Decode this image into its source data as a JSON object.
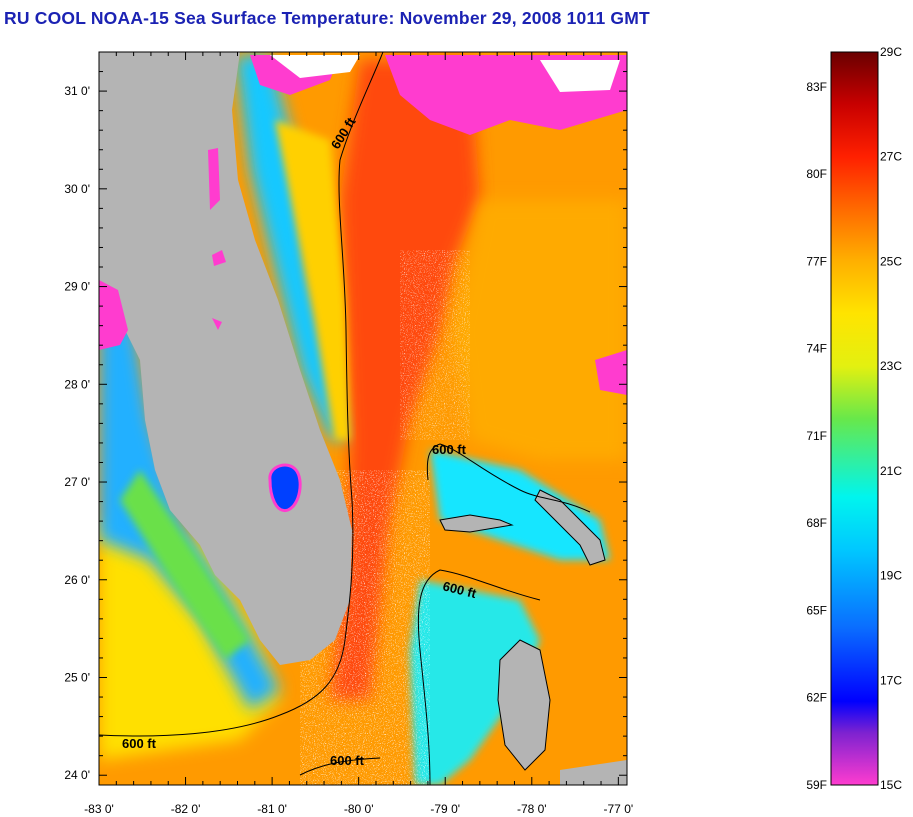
{
  "title": "RU COOL  NOAA-15  Sea Surface Temperature:  November 29, 2008 1011 GMT",
  "map": {
    "lon_range": [
      -83,
      -76.9
    ],
    "lat_range": [
      23.9,
      31.4
    ],
    "lon_ticks": [
      {
        "value": -83,
        "label": "-83 0'"
      },
      {
        "value": -82,
        "label": "-82 0'"
      },
      {
        "value": -81,
        "label": "-81 0'"
      },
      {
        "value": -80,
        "label": "-80 0'"
      },
      {
        "value": -79,
        "label": "-79 0'"
      },
      {
        "value": -78,
        "label": "-78 0'"
      },
      {
        "value": -77,
        "label": "-77 0'"
      }
    ],
    "lat_ticks": [
      {
        "value": 31,
        "label": "31 0'"
      },
      {
        "value": 30,
        "label": "30 0'"
      },
      {
        "value": 29,
        "label": "29 0'"
      },
      {
        "value": 28,
        "label": "28 0'"
      },
      {
        "value": 27,
        "label": "27 0'"
      },
      {
        "value": 26,
        "label": "26 0'"
      },
      {
        "value": 25,
        "label": "25 0'"
      },
      {
        "value": 24,
        "label": "24 0'"
      }
    ],
    "contour_labels": [
      "600 ft",
      "600 ft",
      "600 ft",
      "600 ft",
      "600 ft"
    ],
    "colors": {
      "land": "#b4b4b4",
      "cloud": "#ffffff",
      "contour": "#000000"
    }
  },
  "colorbar": {
    "range_c": [
      15,
      29
    ],
    "celsius_labels": [
      "29C",
      "27C",
      "25C",
      "23C",
      "21C",
      "19C",
      "17C",
      "15C"
    ],
    "fahrenheit_labels": [
      "83F",
      "80F",
      "77F",
      "74F",
      "71F",
      "68F",
      "65F",
      "62F",
      "59F"
    ],
    "stops": [
      {
        "c": 15,
        "color": "#ff3ccf"
      },
      {
        "c": 16,
        "color": "#7d22d0"
      },
      {
        "c": 16.6,
        "color": "#0000ff"
      },
      {
        "c": 18,
        "color": "#0a6dff"
      },
      {
        "c": 19.5,
        "color": "#00c8ff"
      },
      {
        "c": 20.5,
        "color": "#00f5ee"
      },
      {
        "c": 22,
        "color": "#68e84a"
      },
      {
        "c": 23,
        "color": "#e3f010"
      },
      {
        "c": 24,
        "color": "#ffe400"
      },
      {
        "c": 25,
        "color": "#ffb000"
      },
      {
        "c": 26,
        "color": "#ff6a00"
      },
      {
        "c": 27,
        "color": "#ff2000"
      },
      {
        "c": 28,
        "color": "#c80000"
      },
      {
        "c": 29,
        "color": "#6a0000"
      }
    ]
  }
}
